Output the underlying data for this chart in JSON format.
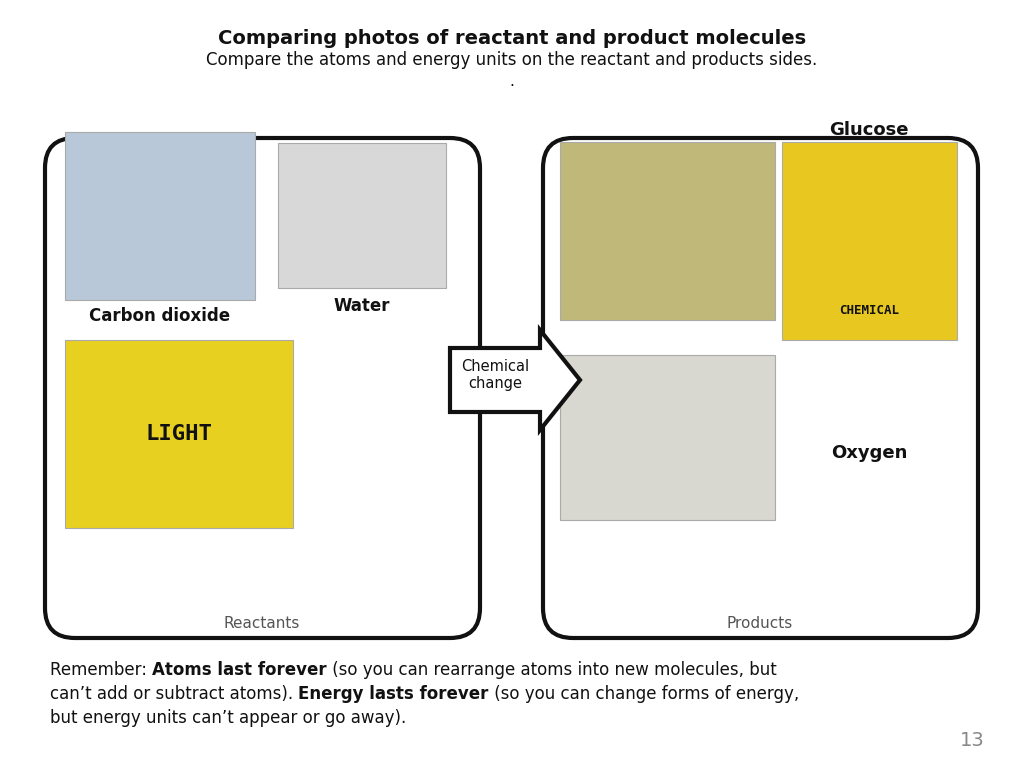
{
  "title_bold": "Comparing photos of reactant and product molecules",
  "title_sub": "Compare the atoms and energy units on the reactant and products sides.",
  "title_dot": ".",
  "left_box_label": "Reactants",
  "right_box_label": "Products",
  "arrow_label": "Chemical\nchange",
  "reactant_label_co2": "Carbon dioxide",
  "reactant_label_water": "Water",
  "product_label_glucose": "Glucose",
  "product_label_oxygen": "Oxygen",
  "remember_line1_normal1": "Remember: ",
  "remember_line1_bold1": "Atoms last forever",
  "remember_line1_normal2": " (so you can rearrange atoms into new molecules, but",
  "remember_line2_normal1": "can’t add or subtract atoms). ",
  "remember_line2_bold2": "Energy lasts forever",
  "remember_line2_normal2": " (so you can change forms of energy,",
  "remember_line3": "but energy units can’t appear or go away).",
  "page_number": "13",
  "bg_color": "#ffffff",
  "box_edge_color": "#111111",
  "text_color": "#111111",
  "label_color": "#555555",
  "co2_img_color": "#b8c8d8",
  "water_img_color": "#d8d8d8",
  "light_img_color": "#e8d020",
  "glucose_img_color": "#c0b878",
  "oxygen_img_color": "#d8d8d0",
  "chemical_img_color": "#e8c820",
  "arrow_face": "#ffffff",
  "arrow_edge": "#111111"
}
